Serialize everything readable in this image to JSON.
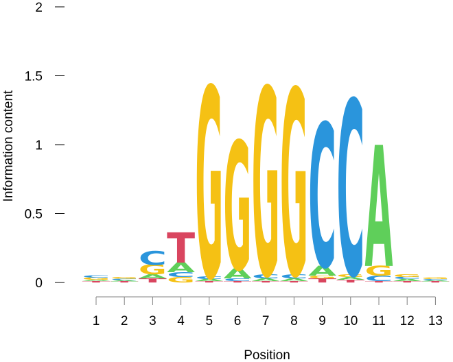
{
  "chart_data": {
    "type": "sequence-logo",
    "xlabel": "Position",
    "ylabel": "Information content",
    "ylim": [
      0,
      2
    ],
    "yticks": [
      {
        "value": 0,
        "label": "0"
      },
      {
        "value": 0.5,
        "label": "0.5"
      },
      {
        "value": 1,
        "label": "1"
      },
      {
        "value": 1.5,
        "label": "1.5"
      },
      {
        "value": 2,
        "label": "2"
      }
    ],
    "positions": [
      "1",
      "2",
      "3",
      "4",
      "5",
      "6",
      "7",
      "8",
      "9",
      "10",
      "11",
      "12",
      "13"
    ],
    "colors": {
      "A": "#5fcf5a",
      "C": "#2a95dc",
      "G": "#f5c114",
      "T": "#d9455f"
    },
    "stacks": [
      [
        {
          "letter": "T",
          "value": 0.01
        },
        {
          "letter": "A",
          "value": 0.01
        },
        {
          "letter": "G",
          "value": 0.015
        },
        {
          "letter": "C",
          "value": 0.015
        }
      ],
      [
        {
          "letter": "T",
          "value": 0.008
        },
        {
          "letter": "A",
          "value": 0.01
        },
        {
          "letter": "C",
          "value": 0.01
        },
        {
          "letter": "G",
          "value": 0.012
        }
      ],
      [
        {
          "letter": "T",
          "value": 0.03
        },
        {
          "letter": "A",
          "value": 0.03
        },
        {
          "letter": "G",
          "value": 0.07
        },
        {
          "letter": "C",
          "value": 0.1
        }
      ],
      [
        {
          "letter": "G",
          "value": 0.04
        },
        {
          "letter": "C",
          "value": 0.035
        },
        {
          "letter": "A",
          "value": 0.07
        },
        {
          "letter": "T",
          "value": 0.22
        }
      ],
      [
        {
          "letter": "T",
          "value": 0.01
        },
        {
          "letter": "A",
          "value": 0.015
        },
        {
          "letter": "C",
          "value": 0.02
        },
        {
          "letter": "G",
          "value": 1.38
        }
      ],
      [
        {
          "letter": "T",
          "value": 0.01
        },
        {
          "letter": "C",
          "value": 0.02
        },
        {
          "letter": "A",
          "value": 0.07
        },
        {
          "letter": "G",
          "value": 0.93
        }
      ],
      [
        {
          "letter": "T",
          "value": 0.01
        },
        {
          "letter": "A",
          "value": 0.02
        },
        {
          "letter": "C",
          "value": 0.03
        },
        {
          "letter": "G",
          "value": 1.36
        }
      ],
      [
        {
          "letter": "T",
          "value": 0.01
        },
        {
          "letter": "A",
          "value": 0.02
        },
        {
          "letter": "C",
          "value": 0.03
        },
        {
          "letter": "G",
          "value": 1.35
        }
      ],
      [
        {
          "letter": "T",
          "value": 0.03
        },
        {
          "letter": "G",
          "value": 0.02
        },
        {
          "letter": "A",
          "value": 0.07
        },
        {
          "letter": "C",
          "value": 1.04
        }
      ],
      [
        {
          "letter": "T",
          "value": 0.02
        },
        {
          "letter": "A",
          "value": 0.02
        },
        {
          "letter": "G",
          "value": 0.02
        },
        {
          "letter": "C",
          "value": 1.27
        }
      ],
      [
        {
          "letter": "T",
          "value": 0.01
        },
        {
          "letter": "C",
          "value": 0.04
        },
        {
          "letter": "G",
          "value": 0.07
        },
        {
          "letter": "A",
          "value": 0.88
        }
      ],
      [
        {
          "letter": "T",
          "value": 0.01
        },
        {
          "letter": "A",
          "value": 0.015
        },
        {
          "letter": "C",
          "value": 0.015
        },
        {
          "letter": "G",
          "value": 0.02
        }
      ],
      [
        {
          "letter": "T",
          "value": 0.008
        },
        {
          "letter": "A",
          "value": 0.008
        },
        {
          "letter": "C",
          "value": 0.01
        },
        {
          "letter": "G",
          "value": 0.012
        }
      ]
    ]
  }
}
